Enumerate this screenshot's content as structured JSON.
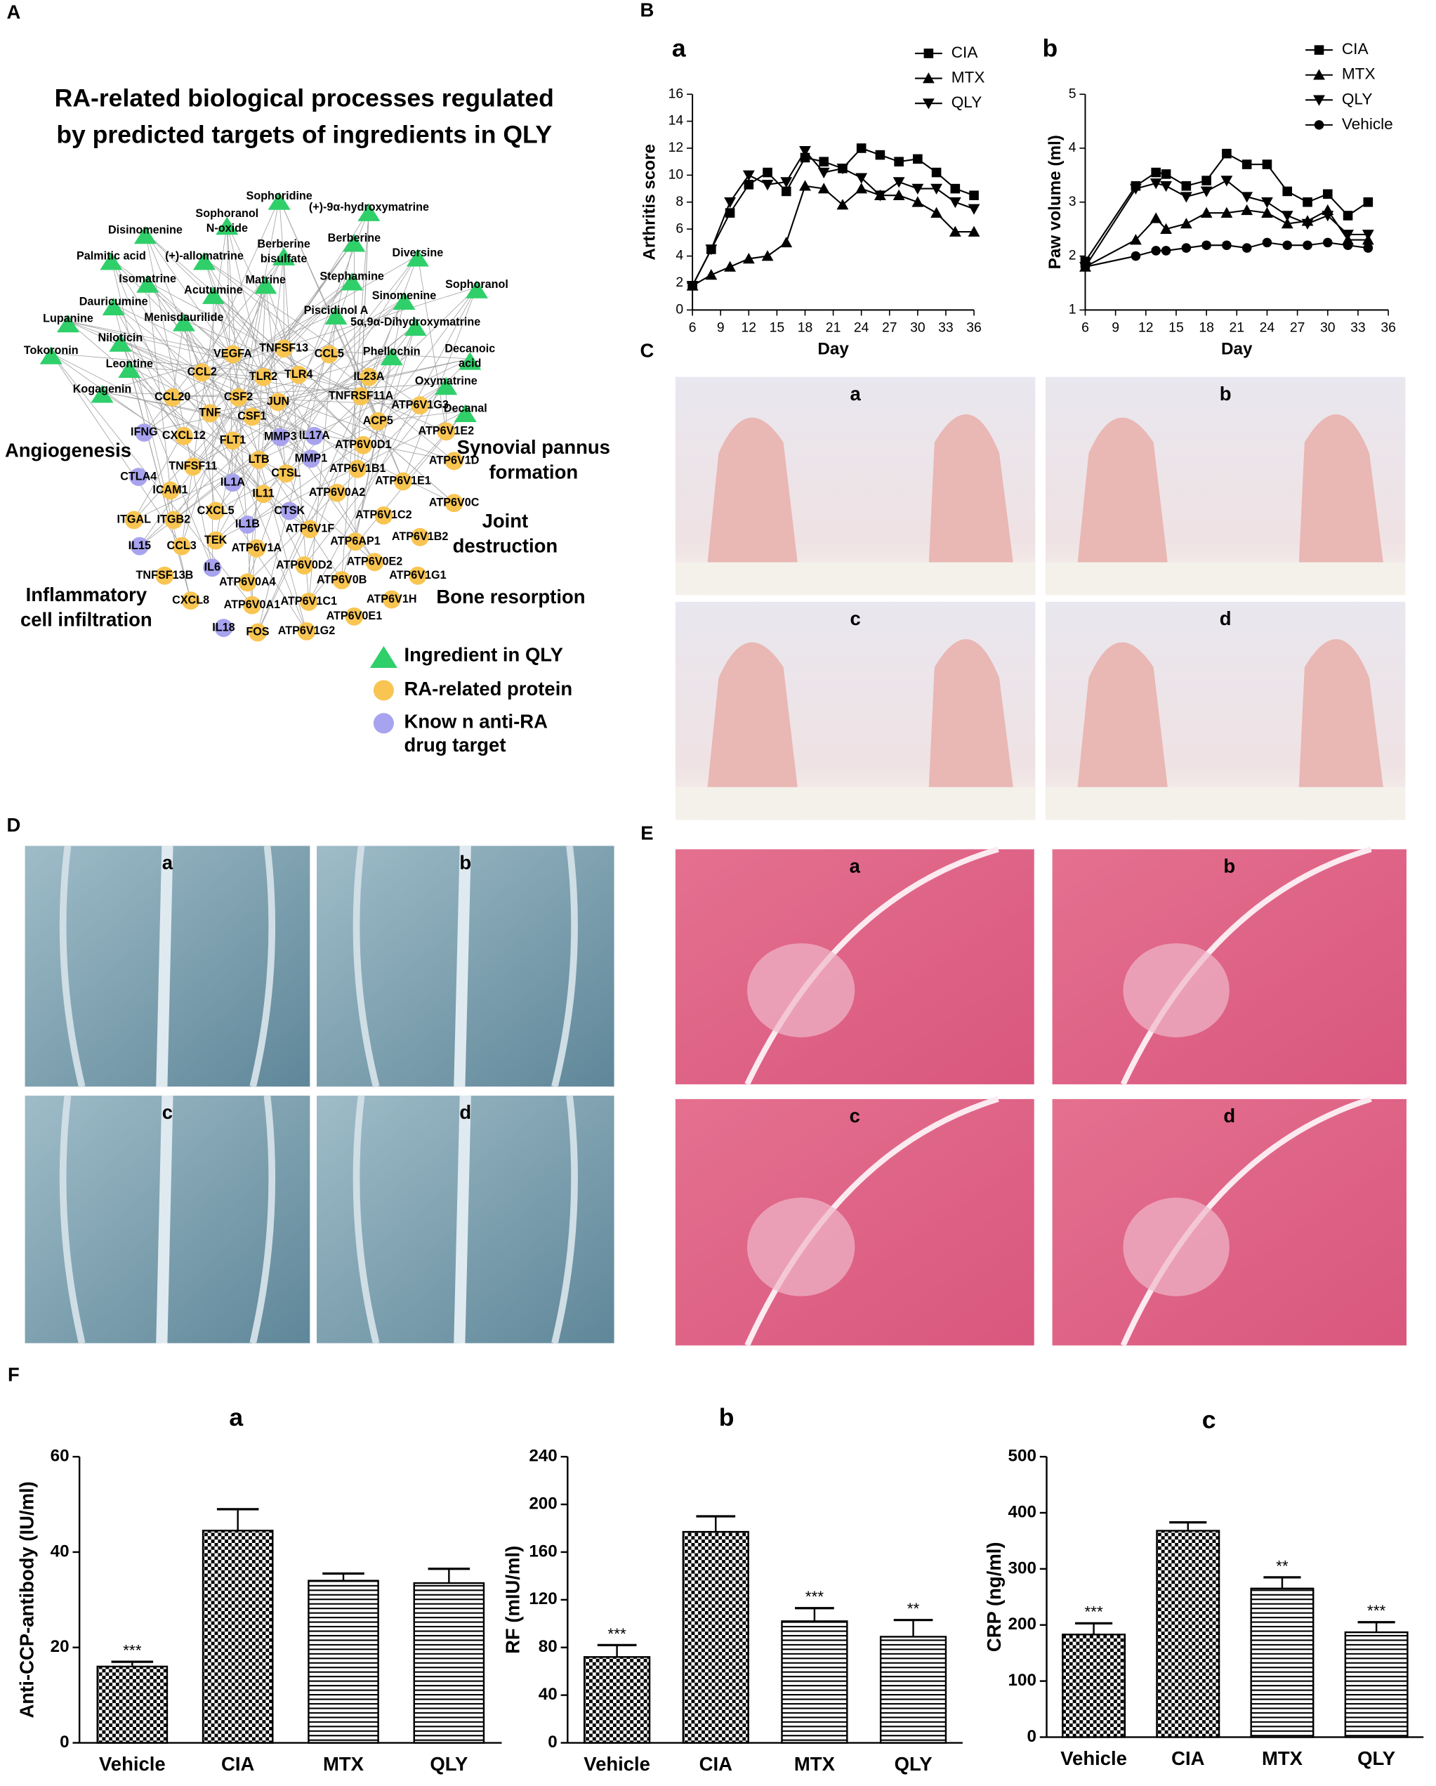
{
  "panel_labels": [
    "A",
    "B",
    "C",
    "D",
    "E",
    "F"
  ],
  "network": {
    "title": [
      "RA-related biological processes regulated",
      "by  predicted targets of ingredients in QLY"
    ],
    "ingredients": [
      "Sophoridine",
      "(+)-9α-hydroxymatrine",
      "Disinomenine",
      [
        "Sophoranol",
        "N-oxide"
      ],
      [
        "Berberine",
        "bisulfate"
      ],
      "Berberine",
      "Palmitic acid",
      "(+)-allomatrine",
      "Diversine",
      "Sophoranol",
      "Isomatrine",
      "Acutumine",
      "Matrine",
      "Stephamine",
      "Sinomenine",
      "Dauricumine",
      "Lupanine",
      "Menisdaurilide",
      "Piscidinol A",
      "5α,9α-Dihydroxymatrine",
      "Niloticin",
      "Tokoronin",
      [
        "Decanoic",
        "acid"
      ],
      "Phellochin",
      "Leontine",
      "Kogagenin",
      "Oxymatrine",
      "Decanal"
    ],
    "proteins": [
      "VEGFA",
      "TNFSF13",
      "CCL5",
      "CCL2",
      "TLR2",
      "TLR4",
      "IL23A",
      "CCL20",
      "CSF2",
      "JUN",
      "TNFRSF11A",
      "ATP6V1G3",
      "TNF",
      "CSF1",
      "ACP5",
      "CXCL12",
      "FLT1",
      "ATP6V0D1",
      "ATP6V1E2",
      "TNFSF11",
      "LTB",
      "ATP6V1B1",
      "ATP6V1D",
      "ICAM1",
      "CTSL",
      "ATP6V1E1",
      "IL11",
      "ATP6V0A2",
      "ATP6V0C",
      "CXCL5",
      "ATP6V1C2",
      "ITGAL",
      "ITGB2",
      "ATP6V1F",
      "ATP6V1B2",
      "CCL3",
      "TEK",
      "ATP6V1A",
      "ATP6AP1",
      "ATP6V0E2",
      "ATP6V0D2",
      "TNFSF13B",
      "ATP6V0A4",
      "ATP6V0B",
      "ATP6V1G1",
      "CXCL8",
      "ATP6V0A1",
      "ATP6V1C1",
      "ATP6V1H",
      "FOS",
      "ATP6V1G2",
      "ATP6V0E1"
    ],
    "drug_targets": [
      "IL17A",
      "IFNG",
      "MMP3",
      "CTLA4",
      "MMP1",
      "IL1A",
      "CTSK",
      "IL1B",
      "IL15",
      "IL6",
      "IL18"
    ],
    "processes": [
      [
        "Angiogenesis"
      ],
      [
        "Synovial pannus",
        "formation"
      ],
      [
        "Joint",
        "destruction"
      ],
      [
        "Bone resorption"
      ],
      [
        "Inflammatory",
        "cell infiltration"
      ]
    ],
    "legend": [
      [
        "Ingredient in QLY"
      ],
      [
        "RA-related protein"
      ],
      [
        "Know n anti-RA",
        "drug target"
      ]
    ]
  },
  "chart_data": [
    {
      "type": "line",
      "title": "a",
      "xlabel": "Day",
      "ylabel": "Arthritis score",
      "x": [
        6,
        8,
        10,
        12,
        14,
        16,
        18,
        20,
        22,
        24,
        26,
        28,
        30,
        32,
        34,
        36
      ],
      "xlim": [
        6,
        36
      ],
      "xticks": [
        6,
        9,
        12,
        15,
        18,
        21,
        24,
        27,
        30,
        33,
        36
      ],
      "ylim": [
        0,
        16
      ],
      "yticks": [
        0,
        2,
        4,
        6,
        8,
        10,
        12,
        14,
        16
      ],
      "legend": "upper right",
      "series": [
        {
          "name": "CIA",
          "color": "#000000",
          "marker": "square",
          "values": [
            1.8,
            4.5,
            7.2,
            9.3,
            10.2,
            8.8,
            11.3,
            11,
            10.5,
            12,
            11.5,
            11,
            11.2,
            10.2,
            9,
            8.5
          ]
        },
        {
          "name": "MTX",
          "color": "#000000",
          "marker": "triangle-up",
          "values": [
            1.8,
            2.6,
            3.2,
            3.8,
            4,
            5,
            9.2,
            9,
            7.8,
            9,
            8.5,
            8.5,
            8,
            7.2,
            5.8,
            5.8
          ]
        },
        {
          "name": "QLY",
          "color": "#000000",
          "marker": "triangle-down",
          "values": [
            1.8,
            4.5,
            8,
            10,
            9.3,
            9.5,
            11.8,
            10.2,
            10.5,
            9.8,
            8.5,
            9.5,
            9,
            9,
            8,
            7.5
          ]
        }
      ]
    },
    {
      "type": "line",
      "title": "b",
      "xlabel": "Day",
      "ylabel": "Paw volume (ml)",
      "x": [
        6,
        11,
        13,
        14,
        16,
        18,
        20,
        22,
        24,
        26,
        28,
        30,
        32,
        34
      ],
      "xlim": [
        6,
        36
      ],
      "xticks": [
        6,
        9,
        12,
        15,
        18,
        21,
        24,
        27,
        30,
        33,
        36
      ],
      "ylim": [
        1,
        5
      ],
      "yticks": [
        1,
        2,
        3,
        4,
        5
      ],
      "legend": "upper right",
      "series": [
        {
          "name": "CIA",
          "color": "#000000",
          "marker": "square",
          "values": [
            1.9,
            3.3,
            3.55,
            3.52,
            3.3,
            3.4,
            3.9,
            3.7,
            3.7,
            3.2,
            3.0,
            3.15,
            2.75,
            3.0
          ]
        },
        {
          "name": "MTX",
          "color": "#000000",
          "marker": "triangle-up",
          "values": [
            1.8,
            2.3,
            2.7,
            2.5,
            2.6,
            2.8,
            2.8,
            2.85,
            2.8,
            2.6,
            2.65,
            2.85,
            2.3,
            2.3
          ]
        },
        {
          "name": "QLY",
          "color": "#000000",
          "marker": "triangle-down",
          "values": [
            1.8,
            3.25,
            3.35,
            3.3,
            3.1,
            3.2,
            3.4,
            3.1,
            3.0,
            2.75,
            2.6,
            2.75,
            2.4,
            2.4
          ]
        },
        {
          "name": "Vehicle",
          "color": "#000000",
          "marker": "circle",
          "values": [
            1.8,
            2.0,
            2.1,
            2.1,
            2.15,
            2.2,
            2.2,
            2.15,
            2.25,
            2.2,
            2.2,
            2.25,
            2.2,
            2.15
          ]
        }
      ]
    },
    {
      "type": "bar",
      "title": "a",
      "ylabel": "Anti-CCP-antibody (IU/ml)",
      "categories": [
        "Vehicle",
        "CIA",
        "MTX",
        "QLY"
      ],
      "values": [
        16,
        44.5,
        34,
        33.5
      ],
      "errors": [
        1,
        4.5,
        1.5,
        3
      ],
      "value_annotations": [
        "***",
        null,
        null,
        null
      ],
      "patterns": [
        "checker",
        "checker",
        "stripes",
        "stripes"
      ],
      "ylim": [
        0,
        60
      ],
      "yticks": [
        0,
        20,
        40,
        60
      ]
    },
    {
      "type": "bar",
      "title": "b",
      "ylabel": "RF (mIU/ml)",
      "categories": [
        "Vehicle",
        "CIA",
        "MTX",
        "QLY"
      ],
      "values": [
        72,
        177,
        102,
        89
      ],
      "errors": [
        10,
        13,
        11,
        14
      ],
      "value_annotations": [
        "***",
        null,
        "***",
        "**"
      ],
      "patterns": [
        "checker",
        "checker",
        "stripes",
        "stripes"
      ],
      "ylim": [
        0,
        240
      ],
      "yticks": [
        0,
        40,
        80,
        120,
        160,
        200,
        240
      ]
    },
    {
      "type": "bar",
      "title": "c",
      "ylabel": "CRP (ng/ml)",
      "categories": [
        "Vehicle",
        "CIA",
        "MTX",
        "QLY"
      ],
      "values": [
        183,
        368,
        265,
        187
      ],
      "errors": [
        20,
        15,
        20,
        18
      ],
      "value_annotations": [
        "***",
        null,
        "**",
        "***"
      ],
      "patterns": [
        "checker",
        "checker",
        "stripes",
        "stripes"
      ],
      "ylim": [
        0,
        500
      ],
      "yticks": [
        0,
        100,
        200,
        300,
        400,
        500
      ]
    }
  ],
  "photos": {
    "C": [
      "a",
      "b",
      "c",
      "d"
    ],
    "D": [
      "a",
      "b",
      "c",
      "d"
    ],
    "E": [
      "a",
      "b",
      "c",
      "d"
    ]
  }
}
